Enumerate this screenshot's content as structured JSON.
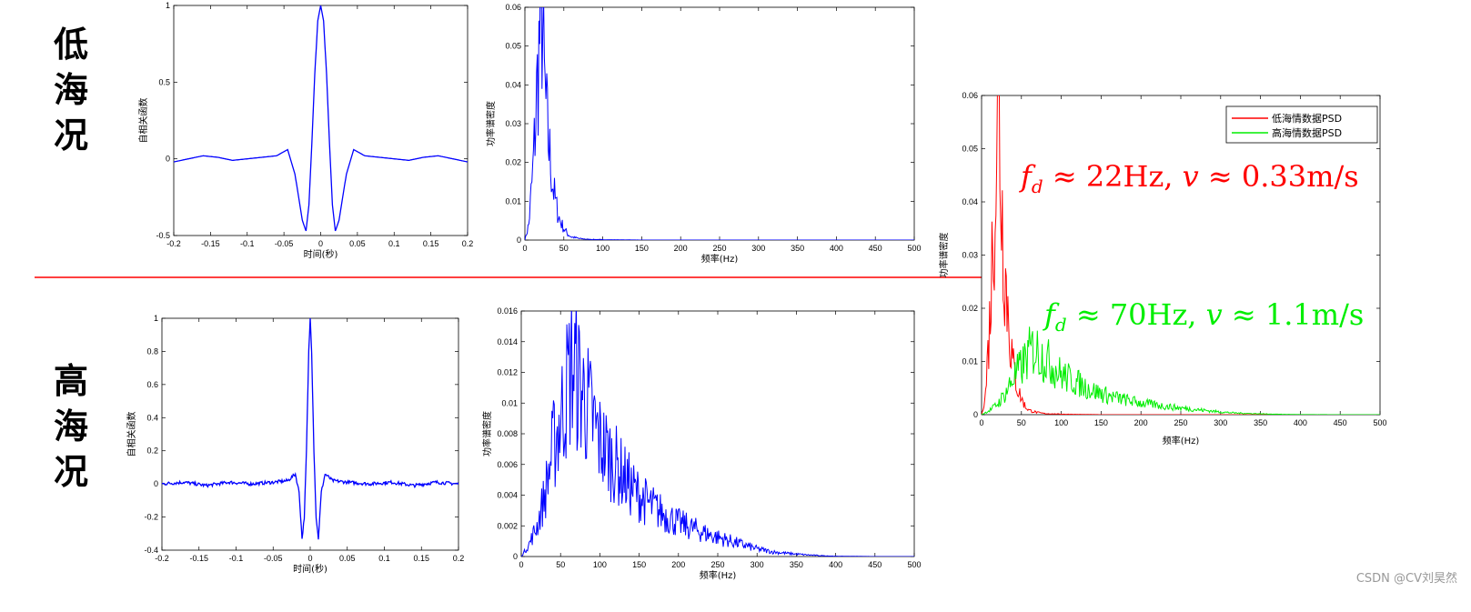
{
  "labels": {
    "low": [
      "低",
      "海",
      "况"
    ],
    "high": [
      "高",
      "海",
      "况"
    ]
  },
  "watermark": "CSDN @CV刘昊然",
  "colors": {
    "blue": "#0000ff",
    "red": "#ff0000",
    "green": "#00ee00",
    "divider": "#ff0000"
  },
  "chart_data": [
    {
      "type": "line",
      "ylabel": "自相关函数",
      "xlabel": "时间(秒)",
      "xlim": [
        -0.2,
        0.2
      ],
      "ylim": [
        -0.5,
        1
      ],
      "xticks": [
        -0.2,
        -0.15,
        -0.1,
        -0.05,
        0,
        0.05,
        0.1,
        0.15,
        0.2
      ],
      "xtick_labels": [
        "-0.2",
        "-0.15",
        "-0.1",
        "-0.05",
        "0",
        "0.05",
        "0.1",
        "0.15",
        "0.2"
      ],
      "yticks": [
        -0.5,
        0,
        0.5,
        1
      ],
      "ytick_labels": [
        "-0.5",
        "0",
        "0.5",
        "1"
      ],
      "series": [
        {
          "color": "#0000ff",
          "x": [
            -0.2,
            -0.18,
            -0.16,
            -0.14,
            -0.12,
            -0.1,
            -0.08,
            -0.06,
            -0.045,
            -0.035,
            -0.025,
            -0.02,
            -0.016,
            -0.012,
            -0.008,
            -0.004,
            0,
            0.004,
            0.008,
            0.012,
            0.016,
            0.02,
            0.025,
            0.035,
            0.045,
            0.06,
            0.08,
            0.1,
            0.12,
            0.14,
            0.16,
            0.18,
            0.2
          ],
          "y": [
            -0.02,
            0.0,
            0.02,
            0.01,
            -0.01,
            0.0,
            0.01,
            0.02,
            0.06,
            -0.1,
            -0.4,
            -0.47,
            -0.3,
            0.1,
            0.55,
            0.9,
            1.0,
            0.9,
            0.55,
            0.1,
            -0.3,
            -0.47,
            -0.4,
            -0.1,
            0.06,
            0.02,
            0.01,
            0.0,
            -0.01,
            0.01,
            0.02,
            0.0,
            -0.02
          ]
        }
      ]
    },
    {
      "type": "line",
      "ylabel": "功率谱密度",
      "xlabel": "频率(Hz)",
      "xlim": [
        0,
        500
      ],
      "ylim": [
        0,
        0.06
      ],
      "xticks": [
        0,
        50,
        100,
        150,
        200,
        250,
        300,
        350,
        400,
        450,
        500
      ],
      "xtick_labels": [
        "0",
        "50",
        "100",
        "150",
        "200",
        "250",
        "300",
        "350",
        "400",
        "450",
        "500"
      ],
      "yticks": [
        0,
        0.01,
        0.02,
        0.03,
        0.04,
        0.05,
        0.06
      ],
      "ytick_labels": [
        "0",
        "0.01",
        "0.02",
        "0.03",
        "0.04",
        "0.05",
        "0.06"
      ],
      "series": [
        {
          "color": "#0000ff",
          "x": [
            0,
            5,
            10,
            14,
            17,
            19,
            21,
            22,
            23,
            24,
            25,
            27,
            30,
            33,
            36,
            40,
            45,
            50,
            55,
            60,
            70,
            80,
            100,
            150,
            200,
            300,
            400,
            500
          ],
          "y": [
            0,
            0.004,
            0.017,
            0.032,
            0.045,
            0.052,
            0.055,
            0.059,
            0.054,
            0.046,
            0.04,
            0.034,
            0.026,
            0.02,
            0.014,
            0.009,
            0.005,
            0.003,
            0.0015,
            0.0008,
            0.0004,
            0.0002,
            0.0001,
            0,
            0,
            0,
            0,
            0
          ]
        }
      ]
    },
    {
      "type": "line",
      "ylabel": "自相关函数",
      "xlabel": "时间(秒)",
      "xlim": [
        -0.2,
        0.2
      ],
      "ylim": [
        -0.4,
        1
      ],
      "xticks": [
        -0.2,
        -0.15,
        -0.1,
        -0.05,
        0,
        0.05,
        0.1,
        0.15,
        0.2
      ],
      "xtick_labels": [
        "-0.2",
        "-0.15",
        "-0.1",
        "-0.05",
        "0",
        "0.05",
        "0.1",
        "0.15",
        "0.2"
      ],
      "yticks": [
        -0.4,
        -0.2,
        0,
        0.2,
        0.4,
        0.6,
        0.8,
        1
      ],
      "ytick_labels": [
        "-0.4",
        "-0.2",
        "0",
        "0.2",
        "0.4",
        "0.6",
        "0.8",
        "1"
      ],
      "series": [
        {
          "color": "#0000ff",
          "x": [
            -0.2,
            -0.17,
            -0.14,
            -0.11,
            -0.08,
            -0.05,
            -0.03,
            -0.02,
            -0.015,
            -0.011,
            -0.008,
            -0.005,
            -0.002,
            0,
            0.002,
            0.005,
            0.008,
            0.011,
            0.015,
            0.02,
            0.03,
            0.05,
            0.08,
            0.11,
            0.14,
            0.17,
            0.2
          ],
          "y": [
            0.0,
            0.01,
            -0.01,
            0.01,
            0.0,
            0.01,
            0.02,
            0.06,
            -0.05,
            -0.33,
            -0.2,
            0.2,
            0.8,
            1.0,
            0.8,
            0.2,
            -0.2,
            -0.33,
            -0.05,
            0.06,
            0.02,
            0.01,
            0.0,
            0.01,
            -0.01,
            0.01,
            0.0
          ]
        }
      ]
    },
    {
      "type": "line",
      "ylabel": "功率谱密度",
      "xlabel": "频率(Hz)",
      "xlim": [
        0,
        500
      ],
      "ylim": [
        0,
        0.016
      ],
      "xticks": [
        0,
        50,
        100,
        150,
        200,
        250,
        300,
        350,
        400,
        450,
        500
      ],
      "xtick_labels": [
        "0",
        "50",
        "100",
        "150",
        "200",
        "250",
        "300",
        "350",
        "400",
        "450",
        "500"
      ],
      "yticks": [
        0,
        0.002,
        0.004,
        0.006,
        0.008,
        0.01,
        0.012,
        0.014,
        0.016
      ],
      "ytick_labels": [
        "0",
        "0.002",
        "0.004",
        "0.006",
        "0.008",
        "0.01",
        "0.012",
        "0.014",
        "0.016"
      ],
      "series": [
        {
          "color": "#0000ff",
          "x": [
            0,
            10,
            20,
            30,
            40,
            50,
            60,
            65,
            70,
            75,
            80,
            90,
            100,
            120,
            140,
            160,
            180,
            200,
            220,
            240,
            260,
            280,
            300,
            320,
            340,
            360,
            380,
            400,
            450,
            500
          ],
          "y": [
            0,
            0.0008,
            0.002,
            0.004,
            0.007,
            0.009,
            0.0115,
            0.0125,
            0.012,
            0.011,
            0.0105,
            0.009,
            0.0075,
            0.006,
            0.0045,
            0.0035,
            0.0028,
            0.0022,
            0.0018,
            0.0014,
            0.0011,
            0.0008,
            0.0005,
            0.0003,
            0.0002,
            0.00012,
            6e-05,
            2e-05,
            0,
            0
          ]
        }
      ]
    },
    {
      "type": "line",
      "ylabel": "功率谱密度",
      "xlabel": "频率(Hz)",
      "xlim": [
        0,
        500
      ],
      "ylim": [
        0,
        0.06
      ],
      "xticks": [
        0,
        50,
        100,
        150,
        200,
        250,
        300,
        350,
        400,
        450,
        500
      ],
      "xtick_labels": [
        "0",
        "50",
        "100",
        "150",
        "200",
        "250",
        "300",
        "350",
        "400",
        "450",
        "500"
      ],
      "yticks": [
        0,
        0.01,
        0.02,
        0.03,
        0.04,
        0.05,
        0.06
      ],
      "ytick_labels": [
        "0",
        "0.01",
        "0.02",
        "0.03",
        "0.04",
        "0.05",
        "0.06"
      ],
      "legend": {
        "location": "top-right",
        "entries": [
          "低海情数据PSD",
          "高海情数据PSD"
        ]
      },
      "annotations": [
        {
          "text_fd": "f",
          "sub": "d",
          "rest": " ≈ 22Hz,  ",
          "v": "v",
          "rest2": " ≈ 0.33m/s",
          "color": "#ff0000"
        },
        {
          "text_fd": "f",
          "sub": "d",
          "rest": " ≈ 70Hz,  ",
          "v": "v",
          "rest2": " ≈ 1.1m/s",
          "color": "#00ee00"
        }
      ],
      "series": [
        {
          "name": "低海情数据PSD",
          "color": "#ff0000",
          "x": [
            0,
            5,
            10,
            14,
            17,
            19,
            21,
            22,
            23,
            24,
            25,
            27,
            30,
            33,
            36,
            40,
            45,
            50,
            55,
            60,
            70,
            80,
            100,
            150,
            200,
            300,
            400,
            500
          ],
          "y": [
            0,
            0.004,
            0.017,
            0.032,
            0.045,
            0.052,
            0.055,
            0.059,
            0.054,
            0.046,
            0.04,
            0.034,
            0.026,
            0.02,
            0.014,
            0.009,
            0.005,
            0.003,
            0.0015,
            0.0008,
            0.0004,
            0.0002,
            0.0001,
            0,
            0,
            0,
            0,
            0
          ]
        },
        {
          "name": "高海情数据PSD",
          "color": "#00ee00",
          "x": [
            0,
            10,
            20,
            30,
            40,
            50,
            60,
            65,
            70,
            75,
            80,
            90,
            100,
            120,
            140,
            160,
            180,
            200,
            220,
            240,
            260,
            280,
            300,
            320,
            340,
            360,
            380,
            400,
            450,
            500
          ],
          "y": [
            0,
            0.0008,
            0.002,
            0.004,
            0.007,
            0.009,
            0.0115,
            0.0125,
            0.012,
            0.011,
            0.0105,
            0.009,
            0.0075,
            0.006,
            0.0045,
            0.0035,
            0.0028,
            0.0022,
            0.0018,
            0.0014,
            0.0011,
            0.0008,
            0.0005,
            0.0003,
            0.0002,
            0.00012,
            6e-05,
            2e-05,
            0,
            0
          ]
        }
      ]
    }
  ]
}
